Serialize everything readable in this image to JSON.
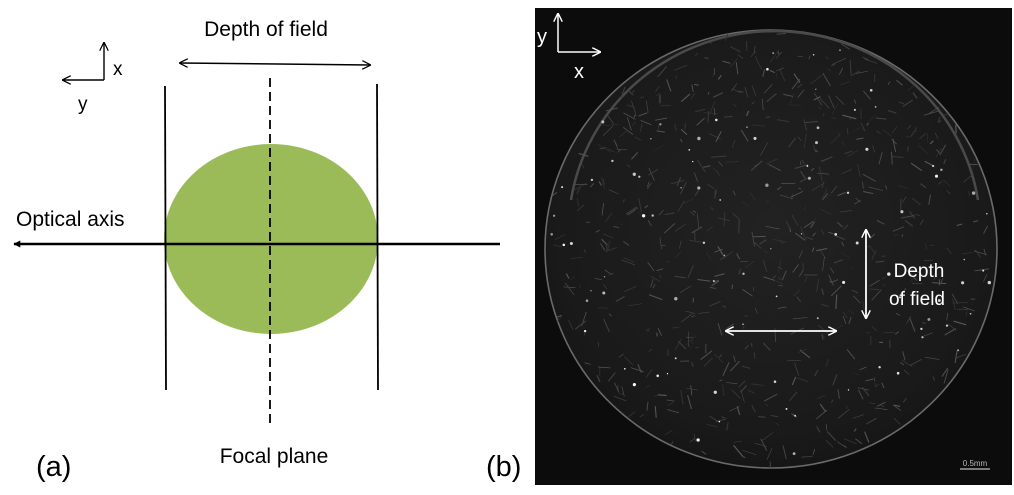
{
  "panel_a": {
    "panel_label": "(a)",
    "depth_of_field_label": "Depth of field",
    "optical_axis_label": "Optical axis",
    "focal_plane_label": "Focal plane",
    "axis_x_label": "x",
    "axis_y_label": "y",
    "sample_color": "#9bbb59",
    "line_color": "#000000"
  },
  "panel_b": {
    "panel_label": "(b)",
    "axis_x_label": "x",
    "axis_y_label": "y",
    "depth_of_field_line1": "Depth",
    "depth_of_field_line2": "of field",
    "scale_bar_label": "0.5mm",
    "background_color": "#0c0c0c",
    "disc_color": "#1c1c1c",
    "annotation_color": "#ffffff"
  }
}
